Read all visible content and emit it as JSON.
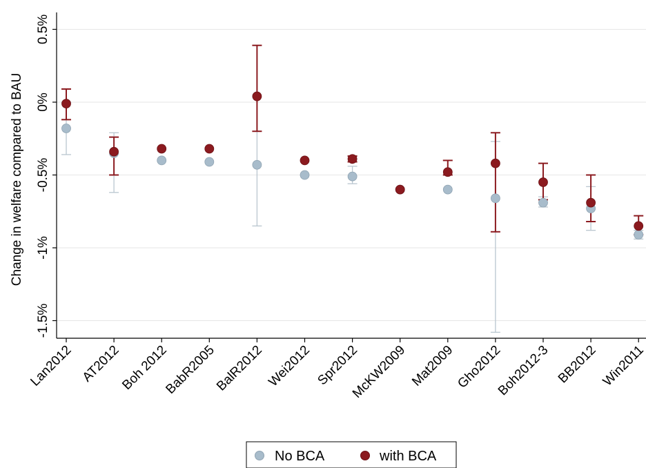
{
  "chart_data": {
    "type": "scatter",
    "ylabel": "Change in welfare compared to BAU",
    "xlabel": "",
    "ylim": [
      -1.65,
      0.55
    ],
    "yticks": [
      {
        "value": 0.5,
        "label": "0.5%"
      },
      {
        "value": 0.0,
        "label": "0%"
      },
      {
        "value": -0.5,
        "label": "-0.5%"
      },
      {
        "value": -1.0,
        "label": "-1%"
      },
      {
        "value": -1.5,
        "label": "-1.5%"
      }
    ],
    "grid": true,
    "legend_position": "bottom",
    "categories": [
      "Lan2012",
      "AT2012",
      "Boh 2012",
      "BabR2005",
      "BalR2012",
      "Wei2012",
      "Spr2012",
      "McKW2009",
      "Mat2009",
      "Gho2012",
      "Boh2012-3",
      "BB2012",
      "Win2011"
    ],
    "series": [
      {
        "name": "No BCA",
        "color": "#a8bccb",
        "values": [
          -0.18,
          -0.35,
          -0.4,
          -0.41,
          -0.43,
          -0.5,
          -0.51,
          -0.6,
          -0.6,
          -0.66,
          -0.69,
          -0.73,
          -0.91
        ],
        "error_low": [
          -0.36,
          -0.62,
          null,
          null,
          -0.85,
          null,
          -0.56,
          null,
          null,
          -1.58,
          -0.72,
          -0.88,
          -0.94
        ],
        "error_high": [
          0.0,
          -0.21,
          null,
          null,
          -0.2,
          null,
          -0.44,
          null,
          null,
          -0.27,
          -0.65,
          -0.58,
          -0.88
        ]
      },
      {
        "name": "with BCA",
        "color": "#8b1a1f",
        "values": [
          -0.01,
          -0.34,
          -0.32,
          -0.32,
          0.04,
          -0.4,
          -0.39,
          -0.6,
          -0.48,
          -0.42,
          -0.55,
          -0.69,
          -0.85
        ],
        "error_low": [
          -0.12,
          -0.5,
          null,
          null,
          -0.2,
          null,
          -0.41,
          null,
          -0.5,
          -0.89,
          -0.67,
          -0.82,
          -0.91
        ],
        "error_high": [
          0.09,
          -0.24,
          null,
          null,
          0.39,
          null,
          -0.37,
          null,
          -0.4,
          -0.21,
          -0.42,
          -0.5,
          -0.78
        ]
      }
    ]
  },
  "colors": {
    "axis": "#000000",
    "grid": "#e6e6e6"
  }
}
